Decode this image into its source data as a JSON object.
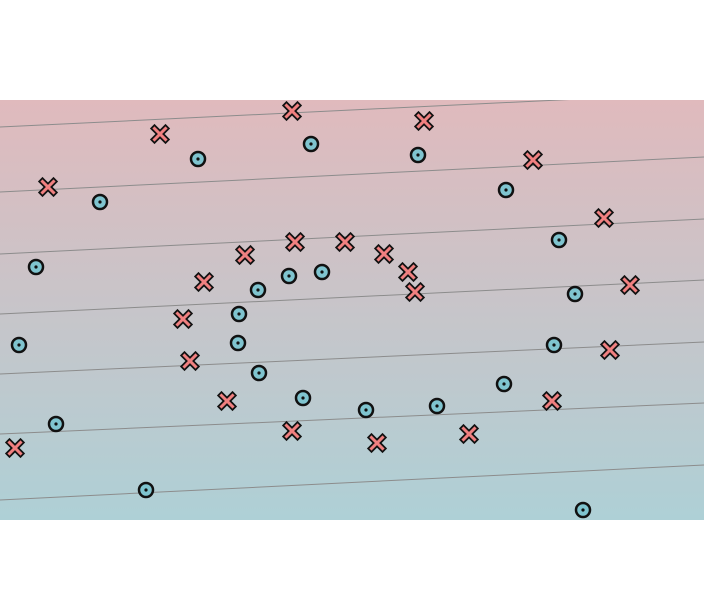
{
  "chart_data": {
    "type": "scatter",
    "title": "",
    "xlabel": "",
    "ylabel": "",
    "xlim": [
      0,
      704
    ],
    "ylim": [
      0,
      420
    ],
    "grid": false,
    "legend": "none",
    "background_gradient": {
      "top_color": "#e0babd",
      "bottom_color": "#aed0d6"
    },
    "contour_lines": [
      {
        "level": 1,
        "x": [
          0,
          704
        ],
        "y": [
          393,
          427
        ]
      },
      {
        "level": 2,
        "x": [
          0,
          704
        ],
        "y": [
          328,
          363
        ]
      },
      {
        "level": 3,
        "x": [
          0,
          704
        ],
        "y": [
          266,
          301
        ]
      },
      {
        "level": 4,
        "x": [
          0,
          704
        ],
        "y": [
          206,
          240
        ]
      },
      {
        "level": 5,
        "x": [
          0,
          704
        ],
        "y": [
          146,
          178
        ]
      },
      {
        "level": 6,
        "x": [
          0,
          704
        ],
        "y": [
          86,
          117
        ]
      },
      {
        "level": 7,
        "x": [
          0,
          704
        ],
        "y": [
          20,
          55
        ]
      }
    ],
    "series": [
      {
        "marker": "cross",
        "color": "#f08080",
        "points": [
          {
            "x": 292,
            "y": 409
          },
          {
            "x": 160,
            "y": 386
          },
          {
            "x": 424,
            "y": 399
          },
          {
            "x": 48,
            "y": 333
          },
          {
            "x": 533,
            "y": 360
          },
          {
            "x": 604,
            "y": 302
          },
          {
            "x": 295,
            "y": 278
          },
          {
            "x": 345,
            "y": 278
          },
          {
            "x": 245,
            "y": 265
          },
          {
            "x": 384,
            "y": 266
          },
          {
            "x": 408,
            "y": 248
          },
          {
            "x": 204,
            "y": 238
          },
          {
            "x": 415,
            "y": 228
          },
          {
            "x": 630,
            "y": 235
          },
          {
            "x": 183,
            "y": 201
          },
          {
            "x": 190,
            "y": 159
          },
          {
            "x": 610,
            "y": 170
          },
          {
            "x": 227,
            "y": 119
          },
          {
            "x": 552,
            "y": 119
          },
          {
            "x": 292,
            "y": 89
          },
          {
            "x": 469,
            "y": 86
          },
          {
            "x": 377,
            "y": 77
          },
          {
            "x": 15,
            "y": 72
          }
        ]
      },
      {
        "marker": "circle",
        "color": "#7fc4cf",
        "points": [
          {
            "x": 198,
            "y": 361
          },
          {
            "x": 311,
            "y": 376
          },
          {
            "x": 418,
            "y": 365
          },
          {
            "x": 100,
            "y": 318
          },
          {
            "x": 506,
            "y": 330
          },
          {
            "x": 559,
            "y": 280
          },
          {
            "x": 36,
            "y": 253
          },
          {
            "x": 322,
            "y": 248
          },
          {
            "x": 289,
            "y": 244
          },
          {
            "x": 258,
            "y": 230
          },
          {
            "x": 575,
            "y": 226
          },
          {
            "x": 239,
            "y": 206
          },
          {
            "x": 238,
            "y": 177
          },
          {
            "x": 19,
            "y": 175
          },
          {
            "x": 554,
            "y": 175
          },
          {
            "x": 259,
            "y": 147
          },
          {
            "x": 303,
            "y": 122
          },
          {
            "x": 504,
            "y": 136
          },
          {
            "x": 366,
            "y": 110
          },
          {
            "x": 437,
            "y": 114
          },
          {
            "x": 56,
            "y": 96
          },
          {
            "x": 146,
            "y": 30
          },
          {
            "x": 583,
            "y": 10
          }
        ]
      }
    ]
  }
}
